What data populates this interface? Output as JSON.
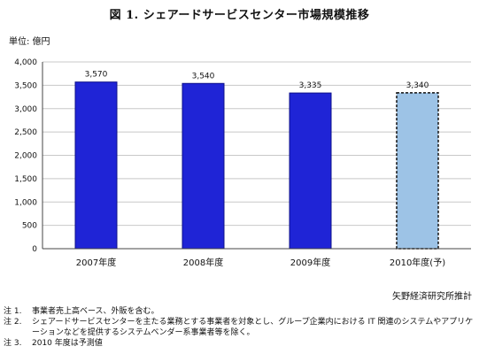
{
  "title": "図 1. シェアードサービスセンター市場規模推移",
  "unit_label": "単位: 億円",
  "source": "矢野経済研究所推計",
  "notes": [
    {
      "label": "注 1.",
      "text": "事業者売上高ベース、外販を含む。"
    },
    {
      "label": "注 2.",
      "text": "シェアードサービスセンターを主たる業務とする事業者を対象とし、グループ企業内における IT 関連のシステムやアプリケーションなどを提供するシステムベンダー系事業者等を除く。"
    },
    {
      "label": "注 3.",
      "text": "2010 年度は予測値"
    }
  ],
  "chart_data": {
    "type": "bar",
    "title": "図 1. シェアードサービスセンター市場規模推移",
    "ylabel": "単位: 億円",
    "categories": [
      "2007年度",
      "2008年度",
      "2009年度",
      "2010年度(予)"
    ],
    "values": [
      3570,
      3540,
      3335,
      3340
    ],
    "data_labels": [
      "3,570",
      "3,540",
      "3,335",
      "3,340"
    ],
    "forecast": [
      false,
      false,
      false,
      true
    ],
    "ylim": [
      0,
      4000
    ],
    "yticks": [
      0,
      500,
      1000,
      1500,
      2000,
      2500,
      3000,
      3500,
      4000
    ],
    "ytick_labels": [
      "0",
      "500",
      "1,000",
      "1,500",
      "2,000",
      "2,500",
      "3,000",
      "3,500",
      "4,000"
    ],
    "grid": true,
    "colors": {
      "bar": "#1f24d6",
      "bar_edge": "#0d108a",
      "forecast_bar": "#9dc3e6",
      "grid": "#c8c8c8",
      "axis": "#444444"
    }
  }
}
